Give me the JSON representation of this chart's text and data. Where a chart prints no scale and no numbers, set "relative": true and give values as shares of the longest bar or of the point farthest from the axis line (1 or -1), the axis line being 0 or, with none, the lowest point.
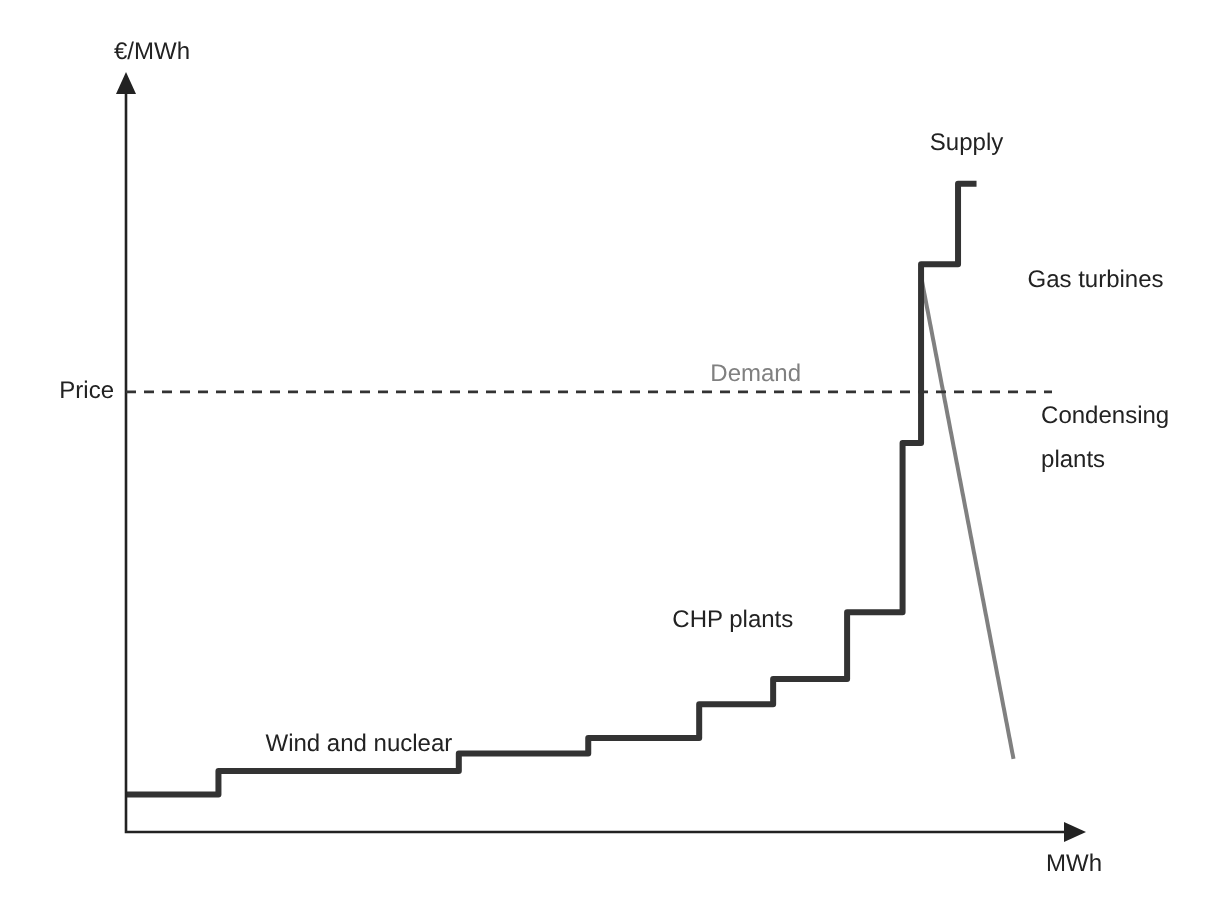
{
  "chart_data": {
    "type": "step",
    "relative": true,
    "xlabel": "MWh",
    "ylabel": "€/MWh",
    "legend": false,
    "marker": "none",
    "categories": [
      null,
      null,
      null,
      null,
      null,
      null,
      null,
      null,
      null,
      null,
      null,
      null,
      null,
      null,
      null,
      null,
      null,
      null,
      null,
      null,
      null,
      null,
      null,
      null,
      null,
      null,
      null,
      null,
      null,
      null,
      null,
      null,
      null,
      null,
      null,
      null,
      null,
      null,
      null,
      null,
      null,
      null,
      null,
      null,
      null,
      null,
      null,
      null,
      null,
      null
    ],
    "series": [
      {
        "name": "Supply",
        "color": "#333333",
        "values": [
          0.058,
          0.058,
          0.058,
          0.058,
          0.058,
          0.094,
          0.094,
          0.094,
          0.094,
          0.094,
          0.094,
          0.094,
          0.094,
          0.094,
          0.094,
          0.094,
          0.094,
          0.094,
          0.121,
          0.121,
          0.121,
          0.121,
          0.121,
          0.121,
          0.121,
          0.145,
          0.145,
          0.145,
          0.145,
          0.145,
          0.145,
          0.197,
          0.197,
          0.197,
          0.197,
          0.236,
          0.236,
          0.236,
          0.236,
          0.339,
          0.339,
          0.339,
          0.6,
          0.876,
          0.876,
          1,
          1,
          null,
          null,
          null
        ]
      },
      {
        "name": "Demand",
        "type": "line",
        "color": "#808080",
        "values": [
          null,
          null,
          null,
          null,
          null,
          null,
          null,
          null,
          null,
          null,
          null,
          null,
          null,
          null,
          null,
          null,
          null,
          null,
          null,
          null,
          null,
          null,
          null,
          null,
          null,
          null,
          null,
          null,
          null,
          null,
          null,
          null,
          null,
          null,
          null,
          null,
          null,
          null,
          null,
          null,
          null,
          null,
          null,
          0.857,
          null,
          null,
          null,
          null,
          0.113,
          null
        ]
      }
    ],
    "ref_lines": [
      {
        "axis": "y",
        "value": 0.679,
        "label": "Price",
        "color": "#333333",
        "line_style": "dashed"
      }
    ],
    "annotations": [
      "Gas turbines",
      "Condensing plants",
      "CHP plants",
      "Wind and nuclear"
    ]
  }
}
